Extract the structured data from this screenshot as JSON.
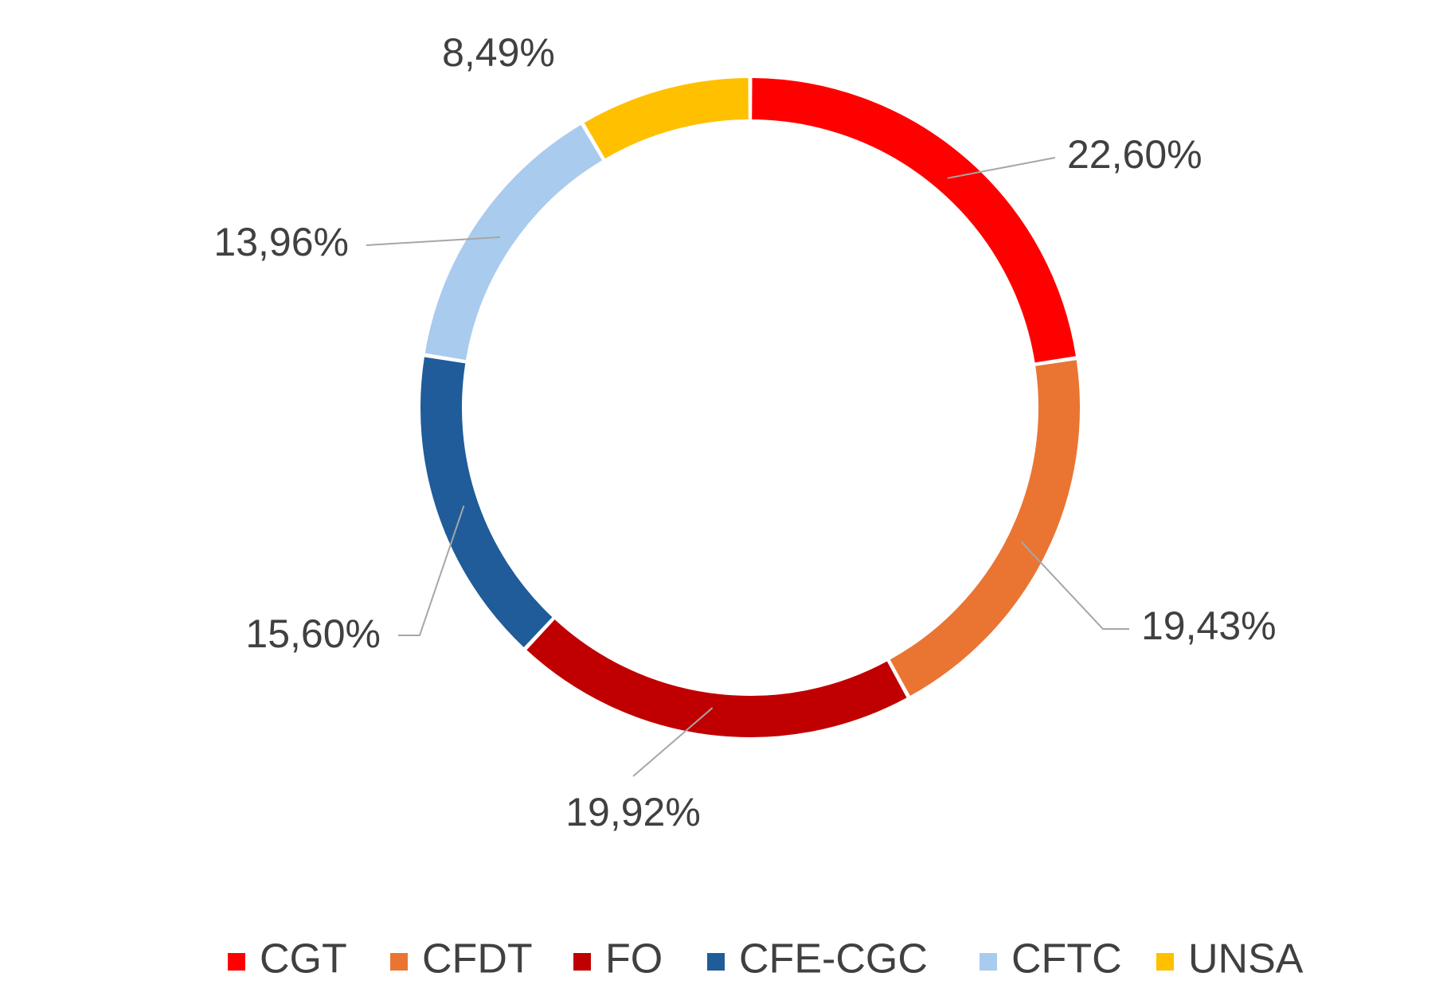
{
  "chart_data": {
    "type": "pie",
    "variant": "donut",
    "categories": [
      "CGT",
      "CFDT",
      "FO",
      "CFE-CGC",
      "CFTC",
      "UNSA"
    ],
    "values": [
      22.6,
      19.43,
      19.92,
      15.6,
      13.96,
      8.49
    ],
    "labels": [
      "22,60%",
      "19,43%",
      "19,92%",
      "15,60%",
      "13,96%",
      "8,49%"
    ],
    "colors": [
      "#ff0000",
      "#ea7533",
      "#c00000",
      "#1f5c99",
      "#a9cbee",
      "#ffc000"
    ],
    "legend": {
      "position": "bottom",
      "entries": [
        "CGT",
        "CFDT",
        "FO",
        "CFE-CGC",
        "CFTC",
        "UNSA"
      ]
    },
    "title": "",
    "grid": false
  }
}
